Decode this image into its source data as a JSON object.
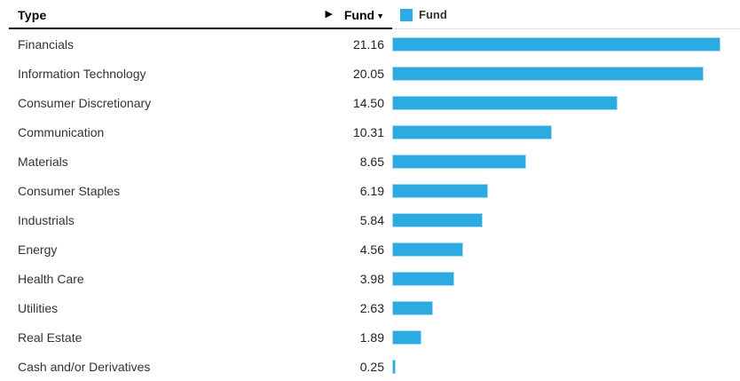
{
  "header": {
    "type_label": "Type",
    "arrow_icon": "▶",
    "fund_label": "Fund",
    "sort_icon": "▼"
  },
  "legend": {
    "label": "Fund",
    "swatch_color": "#2BABE2"
  },
  "colors": {
    "bar_fill": "#2BABE2",
    "bar_border": "#A5DAF2",
    "header_rule": "#000000",
    "chart_rule": "#DDDDDD",
    "row_text": "#333333"
  },
  "chart_data": {
    "type": "bar",
    "orientation": "horizontal",
    "title": "",
    "xlabel": "",
    "ylabel": "",
    "legend": [
      "Fund"
    ],
    "legend_position": "top-left",
    "grid": false,
    "xlim": [
      0,
      22.4
    ],
    "categories": [
      "Financials",
      "Information Technology",
      "Consumer Discretionary",
      "Communication",
      "Materials",
      "Consumer Staples",
      "Industrials",
      "Energy",
      "Health Care",
      "Utilities",
      "Real Estate",
      "Cash and/or Derivatives"
    ],
    "series": [
      {
        "name": "Fund",
        "values": [
          21.16,
          20.05,
          14.5,
          10.31,
          8.65,
          6.19,
          5.84,
          4.56,
          3.98,
          2.63,
          1.89,
          0.25
        ]
      }
    ]
  }
}
